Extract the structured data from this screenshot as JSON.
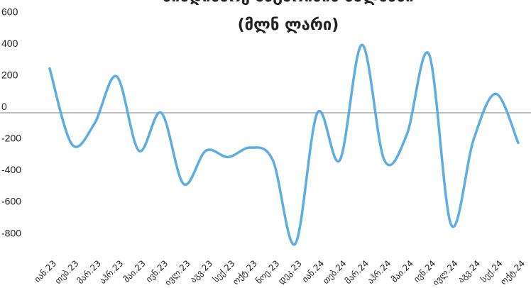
{
  "chart_data": {
    "type": "line",
    "title_lines": [
      "მიმდინარე ანგარიშის ბალანსი",
      "(მლნ ლარი)"
    ],
    "xlabel": "",
    "ylabel": "",
    "ylim": [
      -900,
      600
    ],
    "yticks": [
      600,
      400,
      200,
      0,
      -200,
      -400,
      -600,
      -800
    ],
    "ytick_labels": [
      "600",
      "400",
      "200",
      "0",
      "-200",
      "-400",
      "-600",
      "-800"
    ],
    "grid": false,
    "legend": "none",
    "line_color": "#5DADE2",
    "zero_line_color": "#BFBFBF",
    "categories": [
      "იან.23",
      "თებ.23",
      "მარ.23",
      "აპრ.23",
      "მაი.23",
      "ივნ.23",
      "ივლ.23",
      "აგვ.23",
      "სექ.23",
      "ოქტ.23",
      "ნოე.23",
      "დეკ.23",
      "იან.24",
      "თებ.24",
      "მარ.24",
      "აპრ.24",
      "მაი.24",
      "ივნ.24",
      "ივლ.24",
      "აგვ.24",
      "სექ.24",
      "ოქტ.24"
    ],
    "series": [
      {
        "values": [
          280,
          -200,
          -70,
          230,
          -240,
          0,
          -450,
          -240,
          -280,
          -220,
          -300,
          -830,
          0,
          -300,
          430,
          -300,
          -140,
          370,
          -710,
          -170,
          120,
          -190
        ]
      }
    ]
  }
}
